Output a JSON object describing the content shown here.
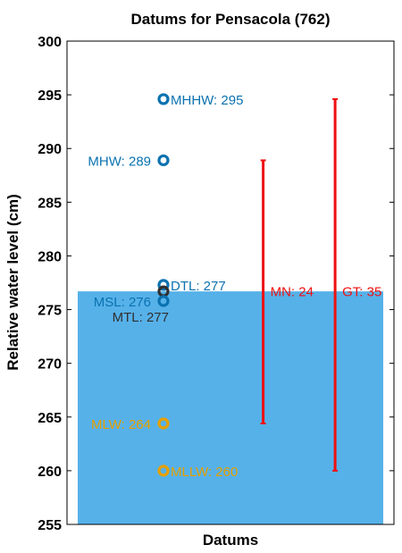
{
  "chart_data": {
    "type": "scatter",
    "title": "Datums for Pensacola (762)",
    "xlabel": "Datums",
    "ylabel": "Relative water level (cm)",
    "ylim": [
      255,
      300
    ],
    "yticks": [
      "255",
      "260",
      "265",
      "270",
      "275",
      "280",
      "285",
      "290",
      "295",
      "300"
    ],
    "grid": false,
    "fill_level": 276.7,
    "colors": {
      "fill": "#56b1e9",
      "blue": "#0a72b0",
      "orange": "#e6a100",
      "dark": "#303030",
      "red": "#ee1111"
    },
    "points": [
      {
        "name": "MHHW",
        "label": "MHHW: 295",
        "y": 294.6,
        "color": "blue",
        "side": "right"
      },
      {
        "name": "MHW",
        "label": "MHW: 289",
        "y": 288.9,
        "color": "blue",
        "side": "left"
      },
      {
        "name": "DTL",
        "label": "DTL: 277",
        "y": 277.3,
        "color": "blue",
        "side": "right"
      },
      {
        "name": "MTL",
        "label": "MTL: 277",
        "y": 276.7,
        "color": "dark",
        "side": "below-left"
      },
      {
        "name": "MSL",
        "label": "MSL: 276",
        "y": 275.8,
        "color": "blue",
        "side": "left"
      },
      {
        "name": "MLW",
        "label": "MLW: 264",
        "y": 264.4,
        "color": "orange",
        "side": "left"
      },
      {
        "name": "MLLW",
        "label": "MLLW: 260",
        "y": 260.0,
        "color": "orange",
        "side": "right"
      }
    ],
    "ranges": [
      {
        "name": "MN",
        "label": "MN: 24",
        "low": 264.4,
        "high": 288.9,
        "position": 0.6
      },
      {
        "name": "GT",
        "label": "GT: 35",
        "low": 260.0,
        "high": 294.6,
        "position": 0.82
      }
    ]
  }
}
